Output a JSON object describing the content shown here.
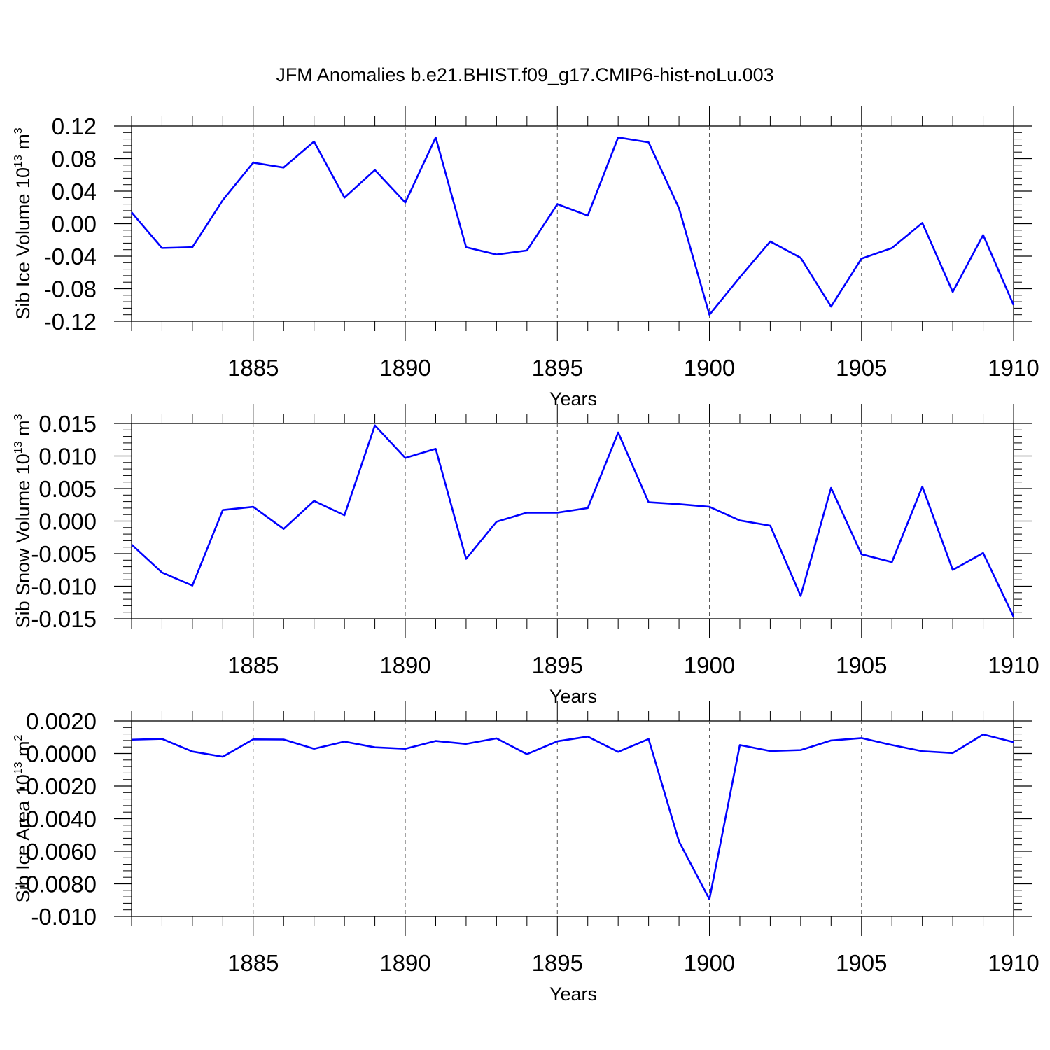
{
  "figure": {
    "title": "JFM Anomalies b.e21.BHIST.f09_g17.CMIP6-hist-noLu.003"
  },
  "chart_data": [
    {
      "type": "line",
      "title": "JFM Anomalies b.e21.BHIST.f09_g17.CMIP6-hist-noLu.003",
      "xlabel": "Years",
      "ylabel": {
        "main": "Sib Ice Volume 10",
        "exp1": "13",
        "unit": " m",
        "exp2": "3"
      },
      "xlim": [
        1881,
        1910
      ],
      "ylim": [
        -0.12,
        0.12
      ],
      "xticks": [
        "1885",
        "1890",
        "1895",
        "1900",
        "1905",
        "1910"
      ],
      "yticks": [
        "0.12",
        "0.08",
        "0.04",
        "0.00",
        "-0.04",
        "-0.08",
        "-0.12"
      ],
      "grid": "vertical dashed lines at major x ticks",
      "line_color": "#0000ff",
      "series": [
        {
          "x": [
            1881,
            1882,
            1883,
            1884,
            1885,
            1886,
            1887,
            1888,
            1889,
            1890,
            1891,
            1892,
            1893,
            1894,
            1895,
            1896,
            1897,
            1898,
            1899,
            1900,
            1901,
            1902,
            1903,
            1904,
            1905,
            1906,
            1907,
            1908,
            1909,
            1910
          ],
          "values": [
            0.014,
            -0.03,
            -0.029,
            0.029,
            0.075,
            0.069,
            0.101,
            0.032,
            0.066,
            0.026,
            0.106,
            -0.029,
            -0.038,
            -0.033,
            0.024,
            0.01,
            0.106,
            0.1,
            0.019,
            -0.112,
            -0.066,
            -0.022,
            -0.042,
            -0.102,
            -0.043,
            -0.03,
            0.001,
            -0.084,
            -0.014,
            -0.1
          ]
        }
      ]
    },
    {
      "type": "line",
      "xlabel": "Years",
      "ylabel": {
        "main": "Sib Snow Volume 10",
        "exp1": "13",
        "unit": " m",
        "exp2": "3"
      },
      "xlim": [
        1881,
        1910
      ],
      "ylim": [
        -0.015,
        0.015
      ],
      "xticks": [
        "1885",
        "1890",
        "1895",
        "1900",
        "1905",
        "1910"
      ],
      "yticks": [
        "0.015",
        "0.010",
        "0.005",
        "0.000",
        "-0.005",
        "-0.010",
        "-0.015"
      ],
      "grid": "vertical dashed lines at major x ticks",
      "line_color": "#0000ff",
      "series": [
        {
          "x": [
            1881,
            1882,
            1883,
            1884,
            1885,
            1886,
            1887,
            1888,
            1889,
            1890,
            1891,
            1892,
            1893,
            1894,
            1895,
            1896,
            1897,
            1898,
            1899,
            1900,
            1901,
            1902,
            1903,
            1904,
            1905,
            1906,
            1907,
            1908,
            1909,
            1910
          ],
          "values": [
            -0.0036,
            -0.0079,
            -0.0099,
            0.0017,
            0.0022,
            -0.0012,
            0.0031,
            0.0009,
            0.0147,
            0.0097,
            0.0111,
            -0.0058,
            -0.0001,
            0.0013,
            0.0013,
            0.002,
            0.0136,
            0.0029,
            0.0026,
            0.0022,
            0.0001,
            -0.0007,
            -0.0115,
            0.0051,
            -0.0051,
            -0.0063,
            0.0053,
            -0.0075,
            -0.0049,
            -0.0147
          ]
        }
      ]
    },
    {
      "type": "line",
      "xlabel": "Years",
      "ylabel": {
        "main": "Sib Ice Area 10",
        "exp1": "13",
        "unit": " m",
        "exp2": "2"
      },
      "xlim": [
        1881,
        1910
      ],
      "ylim": [
        -0.01,
        0.002
      ],
      "xticks": [
        "1885",
        "1890",
        "1895",
        "1900",
        "1905",
        "1910"
      ],
      "yticks": [
        "0.0020",
        "0.0000",
        "-0.0020",
        "-0.0040",
        "-0.0060",
        "-0.0080",
        "-0.010"
      ],
      "grid": "vertical dashed lines at major x ticks",
      "line_color": "#0000ff",
      "series": [
        {
          "x": [
            1881,
            1882,
            1883,
            1884,
            1885,
            1886,
            1887,
            1888,
            1889,
            1890,
            1891,
            1892,
            1893,
            1894,
            1895,
            1896,
            1897,
            1898,
            1899,
            1900,
            1901,
            1902,
            1903,
            1904,
            1905,
            1906,
            1907,
            1908,
            1909,
            1910
          ],
          "values": [
            0.00085,
            0.0009,
            0.00012,
            -0.0002,
            0.00087,
            0.00086,
            0.00029,
            0.00073,
            0.00038,
            0.00029,
            0.00077,
            0.00059,
            0.00093,
            -4e-05,
            0.00075,
            0.00104,
            0.0001,
            0.00089,
            -0.0054,
            -0.00895,
            0.00052,
            0.00015,
            0.00021,
            0.0008,
            0.00095,
            0.00052,
            0.00014,
            3e-05,
            0.00117,
            0.0007
          ]
        }
      ]
    }
  ]
}
